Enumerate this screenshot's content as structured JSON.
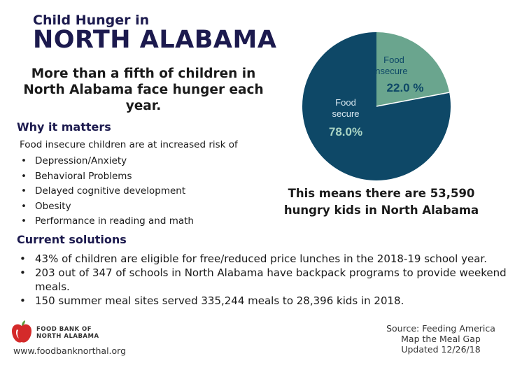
{
  "header": {
    "title_small": "Child Hunger in",
    "title_big": "NORTH ALABAMA",
    "headline": "More than a fifth of children in North Alabama face hunger each year."
  },
  "why": {
    "heading": "Why it matters",
    "intro": "Food insecure children are at increased risk of",
    "items": [
      "Depression/Anxiety",
      "Behavioral Problems",
      "Delayed cognitive development",
      "Obesity",
      "Performance in reading and math"
    ]
  },
  "chart_data": {
    "type": "pie",
    "slices": [
      {
        "label": "Food insecure",
        "label_line1": "Food",
        "label_line2": "insecure",
        "value": 22.0,
        "display": "22.0 %",
        "color": "#6aa58e"
      },
      {
        "label": "Food secure",
        "label_line1": "Food",
        "label_line2": "secure",
        "value": 78.0,
        "display": "78.0%",
        "color": "#0e4867"
      }
    ]
  },
  "kids_note": "This means there are 53,590 hungry kids in North Alabama",
  "solutions": {
    "heading": "Current solutions",
    "items": [
      "43% of children are eligible for free/reduced price lunches in the 2018-19 school year.",
      "203 out of 347 of schools in North Alabama have backpack programs to provide weekend meals.",
      "150 summer meal sites served 335,244 meals to 28,396 kids in 2018."
    ]
  },
  "footer": {
    "org_line1": "FOOD BANK OF",
    "org_line2": "NORTH ALABAMA",
    "website": "www.foodbanknorthal.org",
    "source_line1": "Source: Feeding America",
    "source_line2": "Map the Meal Gap",
    "source_line3": "Updated 12/26/18"
  },
  "colors": {
    "navy": "#1c1a4e",
    "insecure": "#6aa58e",
    "secure": "#0e4867",
    "apple_red": "#d42a2a",
    "apple_green": "#5a9a3a"
  }
}
